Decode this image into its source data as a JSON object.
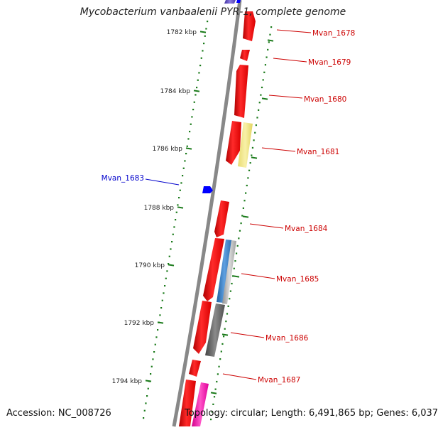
{
  "title": "Mycobacterium vanbaalenii PYR-1, complete genome",
  "footer": {
    "accession": "Accession: NC_008726",
    "summary": "Topology: circular; Length: 6,491,865 bp; Genes: 6,037"
  },
  "colors": {
    "backbone": "#888888",
    "forward_gene": "#ff0000",
    "reverse_gene": "#0000ff",
    "label_forward": "#cc0000",
    "label_reverse": "#0000cc",
    "ticks": "#1a7a1a"
  },
  "scale_labels": [
    "1782 kbp",
    "1784 kbp",
    "1786 kbp",
    "1788 kbp",
    "1790 kbp",
    "1792 kbp",
    "1794 kbp"
  ],
  "gene_labels": [
    {
      "text": "Mvan_1678",
      "strand": "forward"
    },
    {
      "text": "Mvan_1679",
      "strand": "forward"
    },
    {
      "text": "Mvan_1680",
      "strand": "forward"
    },
    {
      "text": "Mvan_1681",
      "strand": "forward"
    },
    {
      "text": "Mvan_1683",
      "strand": "reverse"
    },
    {
      "text": "Mvan_1684",
      "strand": "forward"
    },
    {
      "text": "Mvan_1685",
      "strand": "forward"
    },
    {
      "text": "Mvan_1686",
      "strand": "forward"
    },
    {
      "text": "Mvan_1687",
      "strand": "forward"
    }
  ]
}
